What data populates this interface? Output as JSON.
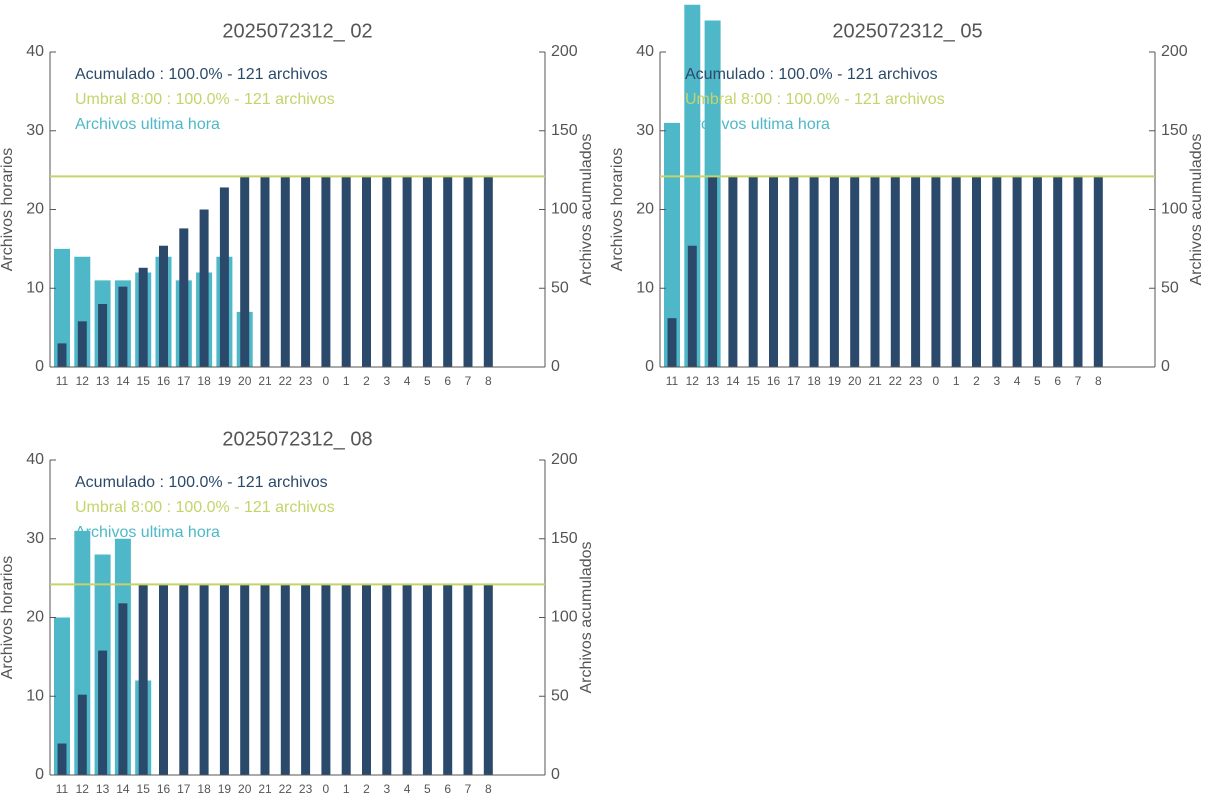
{
  "chart_data": [
    {
      "type": "bar",
      "title": "2025072312_ 02",
      "categories": [
        "11",
        "12",
        "13",
        "14",
        "15",
        "16",
        "17",
        "18",
        "19",
        "20",
        "21",
        "22",
        "23",
        "0",
        "1",
        "2",
        "3",
        "4",
        "5",
        "6",
        "7",
        "8"
      ],
      "series": [
        {
          "name": "Archivos ultima hora",
          "color": "#4fb8c8",
          "values": [
            15,
            14,
            11,
            11,
            12,
            14,
            11,
            12,
            14,
            7,
            null,
            null,
            null,
            null,
            null,
            null,
            null,
            null,
            null,
            null,
            null,
            null
          ]
        },
        {
          "name": "Acumulado : 100.0% - 121 archivos",
          "color": "#2b4a6b",
          "axis": "y2",
          "values": [
            15,
            29,
            40,
            51,
            63,
            77,
            88,
            100,
            114,
            121,
            121,
            121,
            121,
            121,
            121,
            121,
            121,
            121,
            121,
            121,
            121,
            121
          ]
        }
      ],
      "threshold": {
        "name": "Umbral 8:00 : 100.0% - 121 archivos",
        "value": 121,
        "axis": "y2",
        "color": "#c5d36a"
      },
      "ylabel": "Archivos horarios",
      "y2label": "Archivos acumulados",
      "ylim": [
        0,
        40
      ],
      "yticks": [
        0,
        10,
        20,
        30,
        40
      ],
      "y2lim": [
        0,
        200
      ],
      "y2ticks": [
        0,
        50,
        100,
        150,
        200
      ]
    },
    {
      "type": "bar",
      "title": "2025072312_ 05",
      "categories": [
        "11",
        "12",
        "13",
        "14",
        "15",
        "16",
        "17",
        "18",
        "19",
        "20",
        "21",
        "22",
        "23",
        "0",
        "1",
        "2",
        "3",
        "4",
        "5",
        "6",
        "7",
        "8"
      ],
      "series": [
        {
          "name": "Archivos ultima hora",
          "color": "#4fb8c8",
          "values": [
            31,
            46,
            44,
            null,
            null,
            null,
            null,
            null,
            null,
            null,
            null,
            null,
            null,
            null,
            null,
            null,
            null,
            null,
            null,
            null,
            null,
            null
          ]
        },
        {
          "name": "Acumulado : 100.0% - 121 archivos",
          "color": "#2b4a6b",
          "axis": "y2",
          "values": [
            31,
            77,
            121,
            121,
            121,
            121,
            121,
            121,
            121,
            121,
            121,
            121,
            121,
            121,
            121,
            121,
            121,
            121,
            121,
            121,
            121,
            121
          ]
        }
      ],
      "threshold": {
        "name": "Umbral 8:00 : 100.0% - 121 archivos",
        "value": 121,
        "axis": "y2",
        "color": "#c5d36a"
      },
      "ylabel": "Archivos horarios",
      "y2label": "Archivos acumulados",
      "ylim": [
        0,
        40
      ],
      "yticks": [
        0,
        10,
        20,
        30,
        40
      ],
      "y2lim": [
        0,
        200
      ],
      "y2ticks": [
        0,
        50,
        100,
        150,
        200
      ]
    },
    {
      "type": "bar",
      "title": "2025072312_ 08",
      "categories": [
        "11",
        "12",
        "13",
        "14",
        "15",
        "16",
        "17",
        "18",
        "19",
        "20",
        "21",
        "22",
        "23",
        "0",
        "1",
        "2",
        "3",
        "4",
        "5",
        "6",
        "7",
        "8"
      ],
      "series": [
        {
          "name": "Archivos ultima hora",
          "color": "#4fb8c8",
          "values": [
            20,
            31,
            28,
            30,
            12,
            null,
            null,
            null,
            null,
            null,
            null,
            null,
            null,
            null,
            null,
            null,
            null,
            null,
            null,
            null,
            null,
            null
          ]
        },
        {
          "name": "Acumulado : 100.0% - 121 archivos",
          "color": "#2b4a6b",
          "axis": "y2",
          "values": [
            20,
            51,
            79,
            109,
            121,
            121,
            121,
            121,
            121,
            121,
            121,
            121,
            121,
            121,
            121,
            121,
            121,
            121,
            121,
            121,
            121,
            121
          ]
        }
      ],
      "threshold": {
        "name": "Umbral 8:00 : 100.0% - 121 archivos",
        "value": 121,
        "axis": "y2",
        "color": "#c5d36a"
      },
      "ylabel": "Archivos horarios",
      "y2label": "Archivos acumulados",
      "ylim": [
        0,
        40
      ],
      "yticks": [
        0,
        10,
        20,
        30,
        40
      ],
      "y2lim": [
        0,
        200
      ],
      "y2ticks": [
        0,
        50,
        100,
        150,
        200
      ]
    }
  ]
}
